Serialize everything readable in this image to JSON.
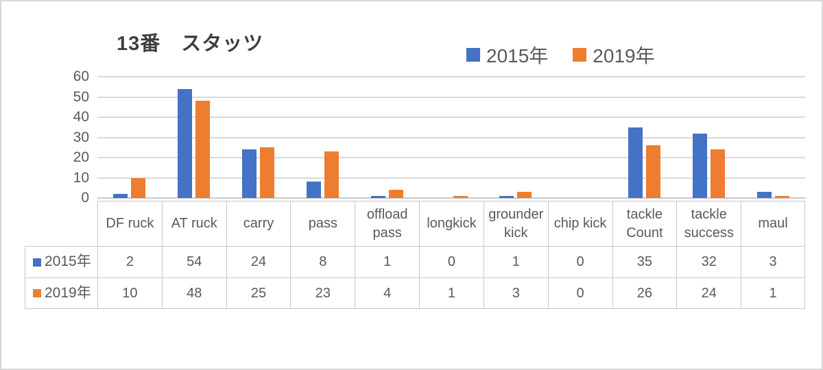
{
  "chart_data": {
    "type": "bar",
    "title": "13番　スタッツ",
    "categories": [
      "DF ruck",
      "AT ruck",
      "carry",
      "pass",
      "offload pass",
      "longkick",
      "grounder kick",
      "chip kick",
      "tackle Count",
      "tackle success",
      "maul"
    ],
    "series": [
      {
        "name": "2015年",
        "color": "#4472C4",
        "values": [
          2,
          54,
          24,
          8,
          1,
          0,
          1,
          0,
          35,
          32,
          3
        ]
      },
      {
        "name": "2019年",
        "color": "#ED7D31",
        "values": [
          10,
          48,
          25,
          23,
          4,
          1,
          3,
          0,
          26,
          24,
          1
        ]
      }
    ],
    "ylim": [
      0,
      60
    ],
    "yticks": [
      0,
      10,
      20,
      30,
      40,
      50,
      60
    ],
    "grid": true,
    "legend_position": "top",
    "data_table_shown": true
  },
  "colors": {
    "series_2015": "#4472C4",
    "series_2019": "#ED7D31",
    "gridline": "#d9d9d9",
    "axis_text": "#595959",
    "title_text": "#3f3f3f",
    "table_border": "#c8c8c8"
  }
}
